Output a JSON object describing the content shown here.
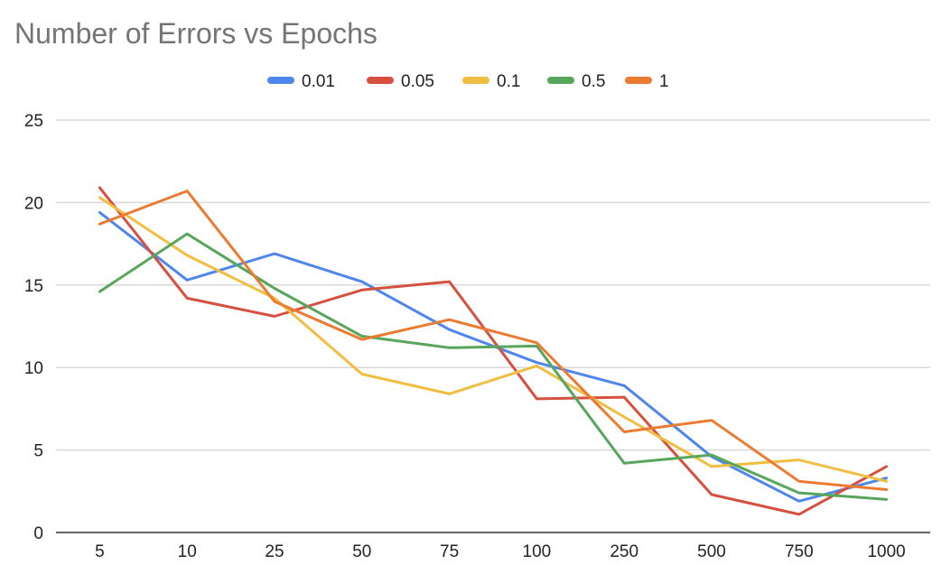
{
  "chart_data": {
    "type": "line",
    "title": "Number of Errors vs Epochs",
    "xlabel": "",
    "ylabel": "",
    "categories": [
      "5",
      "10",
      "25",
      "50",
      "75",
      "100",
      "250",
      "500",
      "750",
      "1000"
    ],
    "ylim": [
      0,
      25
    ],
    "yticks": [
      0,
      5,
      10,
      15,
      20,
      25
    ],
    "grid": true,
    "legend_position": "top",
    "series": [
      {
        "name": "0.01",
        "color": "#4f86ec",
        "values": [
          19.4,
          15.3,
          16.9,
          15.2,
          12.3,
          10.3,
          8.9,
          4.6,
          1.9,
          3.3
        ]
      },
      {
        "name": "0.05",
        "color": "#d6503f",
        "values": [
          20.9,
          14.2,
          13.1,
          14.7,
          15.2,
          8.1,
          8.2,
          2.3,
          1.1,
          4.0
        ]
      },
      {
        "name": "0.1",
        "color": "#f1be42",
        "values": [
          20.3,
          16.8,
          14.2,
          9.6,
          8.4,
          10.1,
          7.0,
          4.0,
          4.4,
          3.1
        ]
      },
      {
        "name": "0.5",
        "color": "#58a55c",
        "values": [
          14.6,
          18.1,
          14.8,
          11.9,
          11.2,
          11.3,
          4.2,
          4.7,
          2.4,
          2.0
        ]
      },
      {
        "name": "1",
        "color": "#ec7b32",
        "values": [
          18.7,
          20.7,
          14.0,
          11.7,
          12.9,
          11.5,
          6.1,
          6.8,
          3.1,
          2.6
        ]
      }
    ]
  }
}
